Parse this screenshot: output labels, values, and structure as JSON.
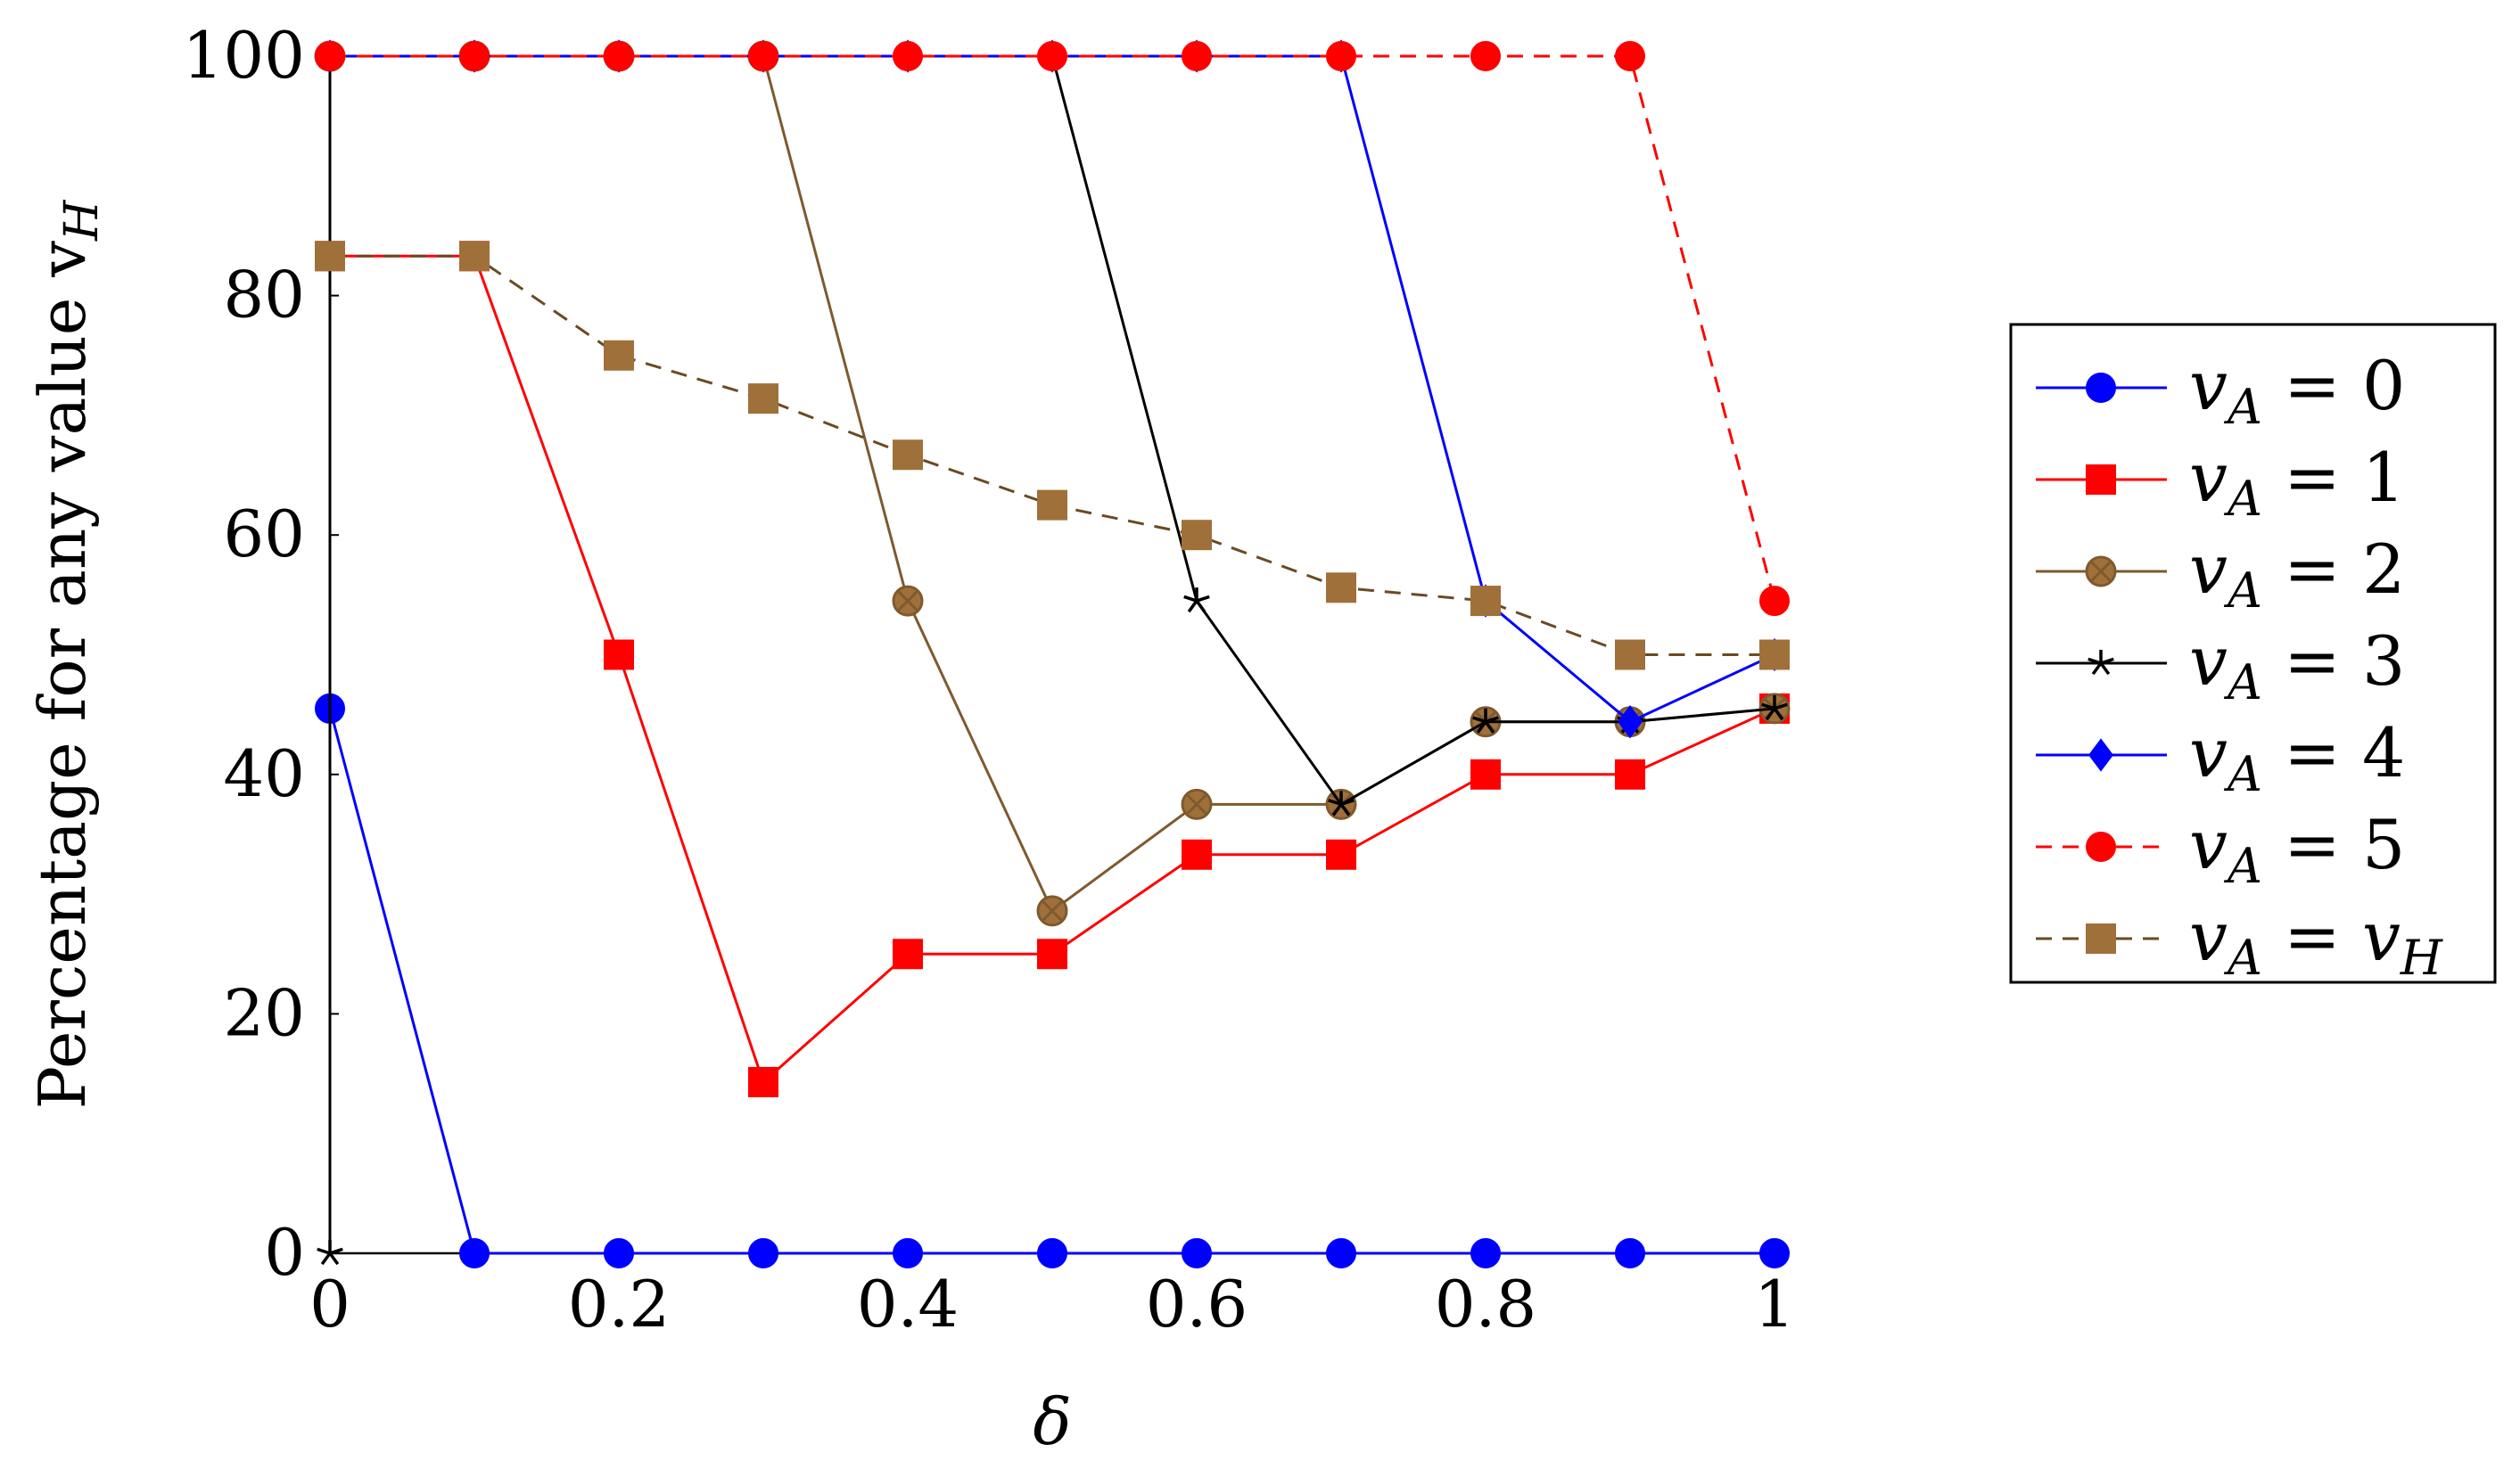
{
  "chart_data": {
    "type": "line",
    "xlabel": "δ",
    "ylabel": "Percentage for any value v",
    "ylabel_subscript": "H",
    "xlim": [
      0,
      1
    ],
    "ylim": [
      0,
      100
    ],
    "x_ticks": [
      0,
      0.2,
      0.4,
      0.6,
      0.8,
      1
    ],
    "x_tick_labels": [
      "0",
      "0.2",
      "0.4",
      "0.6",
      "0.8",
      "1"
    ],
    "y_ticks": [
      0,
      20,
      40,
      60,
      80,
      100
    ],
    "y_tick_labels": [
      "0",
      "20",
      "40",
      "60",
      "80",
      "100"
    ],
    "grid": false,
    "legend_position": "right",
    "x": [
      0,
      0.1,
      0.2,
      0.3,
      0.4,
      0.5,
      0.6,
      0.7,
      0.8,
      0.9,
      1.0
    ],
    "series": [
      {
        "name": "v",
        "subscript": "A",
        "rhs": "0",
        "rhs_italic": false,
        "color": "#0000ff",
        "marker": "circle",
        "dash": false,
        "points": [
          [
            0,
            45.5
          ],
          [
            0.1,
            0
          ],
          [
            0.2,
            0
          ],
          [
            0.3,
            0
          ],
          [
            0.4,
            0
          ],
          [
            0.5,
            0
          ],
          [
            0.6,
            0
          ],
          [
            0.7,
            0
          ],
          [
            0.8,
            0
          ],
          [
            0.9,
            0
          ],
          [
            1,
            0
          ]
        ]
      },
      {
        "name": "v",
        "subscript": "A",
        "rhs": "1",
        "rhs_italic": false,
        "color": "#ff0000",
        "marker": "square",
        "dash": false,
        "points": [
          [
            0,
            83.3
          ],
          [
            0.1,
            83.3
          ],
          [
            0.2,
            50
          ],
          [
            0.3,
            14.3
          ],
          [
            0.4,
            25
          ],
          [
            0.5,
            25
          ],
          [
            0.6,
            33.3
          ],
          [
            0.7,
            33.3
          ],
          [
            0.8,
            40
          ],
          [
            0.9,
            40
          ],
          [
            1,
            45.5
          ]
        ]
      },
      {
        "name": "v",
        "subscript": "A",
        "rhs": "2",
        "rhs_italic": false,
        "color": "#7f5a2e",
        "marker": "otimes",
        "dash": false,
        "points": [
          [
            0,
            100
          ],
          [
            0.1,
            100
          ],
          [
            0.2,
            100
          ],
          [
            0.3,
            100
          ],
          [
            0.4,
            54.5
          ],
          [
            0.5,
            28.6
          ],
          [
            0.6,
            37.5
          ],
          [
            0.7,
            37.5
          ],
          [
            0.8,
            44.4
          ],
          [
            0.9,
            44.4
          ],
          [
            1,
            45.5
          ]
        ]
      },
      {
        "name": "v",
        "subscript": "A",
        "rhs": "3",
        "rhs_italic": false,
        "color": "#000000",
        "marker": "star",
        "dash": false,
        "points": [
          [
            0,
            0
          ],
          [
            0,
            100
          ],
          [
            0.1,
            100
          ],
          [
            0.2,
            100
          ],
          [
            0.3,
            100
          ],
          [
            0.4,
            100
          ],
          [
            0.5,
            100
          ],
          [
            0.6,
            54.5
          ],
          [
            0.7,
            37.5
          ],
          [
            0.8,
            44.4
          ],
          [
            0.9,
            44.4
          ],
          [
            1,
            45.5
          ]
        ]
      },
      {
        "name": "v",
        "subscript": "A",
        "rhs": "4",
        "rhs_italic": false,
        "color": "#0000ff",
        "marker": "diamond",
        "dash": false,
        "points": [
          [
            0,
            100
          ],
          [
            0.1,
            100
          ],
          [
            0.2,
            100
          ],
          [
            0.3,
            100
          ],
          [
            0.4,
            100
          ],
          [
            0.5,
            100
          ],
          [
            0.6,
            100
          ],
          [
            0.7,
            100
          ],
          [
            0.8,
            54.5
          ],
          [
            0.9,
            44.4
          ],
          [
            1,
            50
          ]
        ]
      },
      {
        "name": "v",
        "subscript": "A",
        "rhs": "5",
        "rhs_italic": false,
        "color": "#ff0000",
        "marker": "circle",
        "dash": true,
        "points": [
          [
            0,
            100
          ],
          [
            0.1,
            100
          ],
          [
            0.2,
            100
          ],
          [
            0.3,
            100
          ],
          [
            0.4,
            100
          ],
          [
            0.5,
            100
          ],
          [
            0.6,
            100
          ],
          [
            0.7,
            100
          ],
          [
            0.8,
            100
          ],
          [
            0.9,
            100
          ],
          [
            1,
            54.5
          ]
        ]
      },
      {
        "name": "v",
        "subscript": "A",
        "rhs": "v",
        "rhs_subscript": "H",
        "rhs_italic": true,
        "color": "#a0703a",
        "line_color": "#6b4a22",
        "marker": "square",
        "dash": true,
        "points": [
          [
            0,
            83.3
          ],
          [
            0.1,
            83.3
          ],
          [
            0.2,
            75
          ],
          [
            0.3,
            71.4
          ],
          [
            0.4,
            66.7
          ],
          [
            0.5,
            62.5
          ],
          [
            0.6,
            60
          ],
          [
            0.7,
            55.6
          ],
          [
            0.8,
            54.5
          ],
          [
            0.9,
            50
          ],
          [
            1,
            50
          ]
        ]
      }
    ]
  }
}
